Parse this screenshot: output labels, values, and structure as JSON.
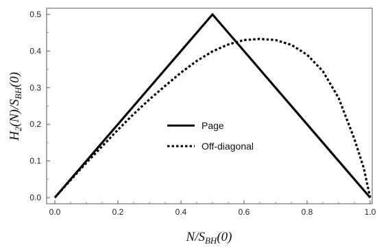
{
  "chart_data": {
    "type": "line",
    "xlabel": {
      "main": "N/S",
      "sub": "BH",
      "tail": "(0)"
    },
    "ylabel": {
      "main": "H",
      "sub1": "2",
      "mid": "(N)/S",
      "sub2": "BH",
      "tail": "(0)"
    },
    "xlim": [
      0,
      1
    ],
    "ylim": [
      0,
      0.5
    ],
    "x_ticks": [
      0.0,
      0.2,
      0.4,
      0.6,
      0.8,
      1.0
    ],
    "x_tick_labels": [
      "0.0",
      "0.2",
      "0.4",
      "0.6",
      "0.8",
      "1.0"
    ],
    "y_ticks": [
      0.0,
      0.1,
      0.2,
      0.3,
      0.4,
      0.5
    ],
    "y_tick_labels": [
      "0.0",
      "0.1",
      "0.2",
      "0.3",
      "0.4",
      "0.5"
    ],
    "grid": false,
    "legend_position": "center",
    "series": [
      {
        "name": "Page",
        "style": "solid",
        "color": "#000000",
        "x": [
          0.0,
          0.5,
          1.0
        ],
        "y": [
          0.0,
          0.5,
          0.0
        ]
      },
      {
        "name": "Off-diagonal",
        "style": "dotted",
        "color": "#000000",
        "x": [
          0.0,
          0.05,
          0.1,
          0.15,
          0.2,
          0.25,
          0.3,
          0.35,
          0.4,
          0.45,
          0.5,
          0.55,
          0.6,
          0.65,
          0.7,
          0.75,
          0.8,
          0.85,
          0.9,
          0.95,
          0.98,
          1.0
        ],
        "y": [
          0.0,
          0.048,
          0.095,
          0.14,
          0.185,
          0.228,
          0.268,
          0.305,
          0.341,
          0.373,
          0.399,
          0.418,
          0.43,
          0.433,
          0.43,
          0.417,
          0.39,
          0.345,
          0.272,
          0.16,
          0.08,
          0.0
        ]
      }
    ]
  }
}
